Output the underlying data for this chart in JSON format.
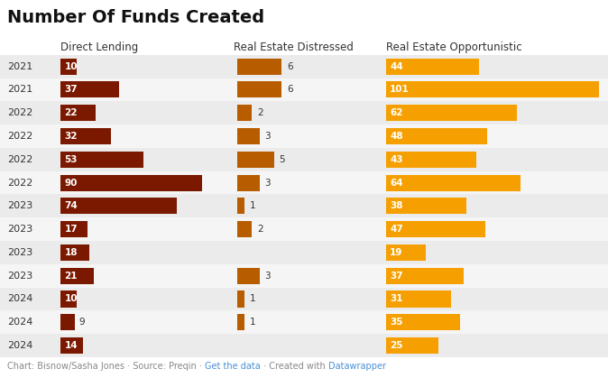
{
  "title": "Number Of Funds Created",
  "background_color": "#ffffff",
  "row_colors": [
    "#ebebeb",
    "#f5f5f5"
  ],
  "rows": [
    {
      "year": "2021",
      "dl": 10,
      "red": 6,
      "opp": 44
    },
    {
      "year": "2021",
      "dl": 37,
      "red": 6,
      "opp": 101
    },
    {
      "year": "2022",
      "dl": 22,
      "red": 2,
      "opp": 62
    },
    {
      "year": "2022",
      "dl": 32,
      "red": 3,
      "opp": 48
    },
    {
      "year": "2022",
      "dl": 53,
      "red": 5,
      "opp": 43
    },
    {
      "year": "2022",
      "dl": 90,
      "red": 3,
      "opp": 64
    },
    {
      "year": "2023",
      "dl": 74,
      "red": 1,
      "opp": 38
    },
    {
      "year": "2023",
      "dl": 17,
      "red": 2,
      "opp": 47
    },
    {
      "year": "2023",
      "dl": 18,
      "red": 0,
      "opp": 19
    },
    {
      "year": "2023",
      "dl": 21,
      "red": 3,
      "opp": 37
    },
    {
      "year": "2024",
      "dl": 10,
      "red": 1,
      "opp": 31
    },
    {
      "year": "2024",
      "dl": 9,
      "red": 1,
      "opp": 35
    },
    {
      "year": "2024",
      "dl": 14,
      "red": 0,
      "opp": 25
    }
  ],
  "col_headers": [
    "Direct Lending",
    "Real Estate Distressed",
    "Real Estate Opportunistic"
  ],
  "dl_color": "#7B1900",
  "red_color": "#B85C00",
  "opp_color": "#F5A000",
  "dl_max": 101,
  "red_max": 6,
  "opp_max": 101,
  "title_fontsize": 14,
  "header_fontsize": 8.5,
  "label_fontsize": 7.5,
  "year_fontsize": 8,
  "footer_fontsize": 7
}
